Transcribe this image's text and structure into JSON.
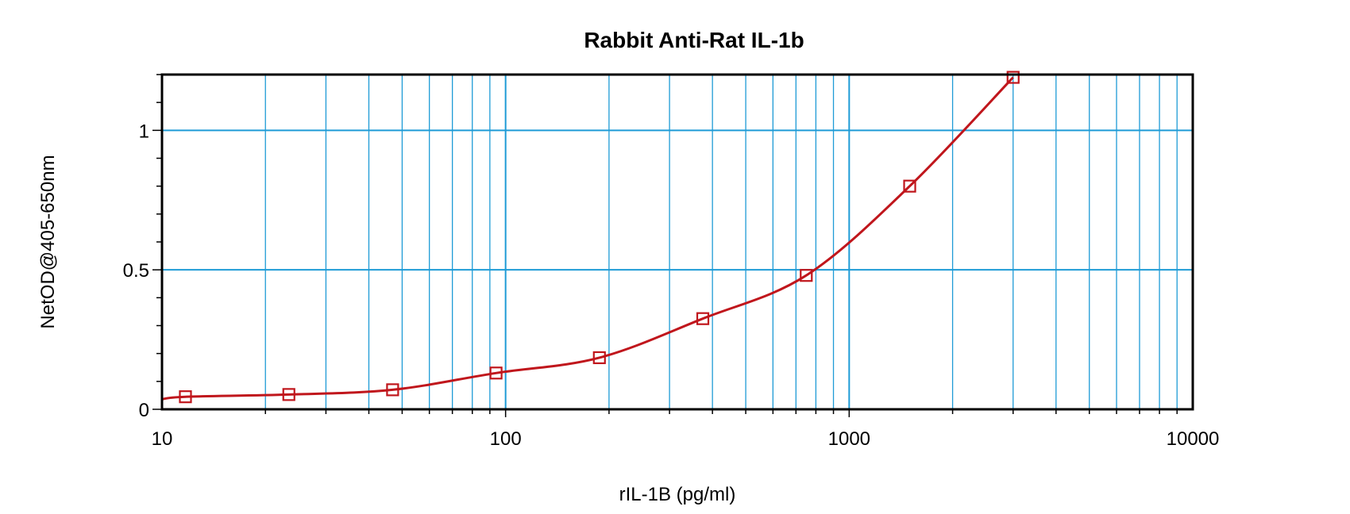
{
  "chart_data": {
    "type": "scatter",
    "title": "Rabbit Anti-Rat IL-1b",
    "xlabel": "rIL-1B (pg/ml)",
    "ylabel": "NetOD@405-650nm",
    "x_scale": "log",
    "xlim": [
      10,
      10000
    ],
    "ylim": [
      0,
      1.2
    ],
    "grid": true,
    "x_ticks": [
      10,
      100,
      1000,
      10000
    ],
    "x_tick_labels": [
      "10",
      "100",
      "1000",
      "10000"
    ],
    "y_ticks": [
      0,
      0.5,
      1
    ],
    "y_tick_labels": [
      "0",
      "0.5",
      "1"
    ],
    "series": [
      {
        "x": [
          11.7,
          23.4,
          46.9,
          93.8,
          187.5,
          375,
          750,
          1500,
          3000
        ],
        "y": [
          0.045,
          0.053,
          0.07,
          0.13,
          0.185,
          0.325,
          0.48,
          0.8,
          1.19
        ],
        "marker": "square",
        "fit_line": true
      }
    ],
    "colors": {
      "grid": "#1e9bd6",
      "series": "#c0161c",
      "axis": "#000000"
    }
  }
}
